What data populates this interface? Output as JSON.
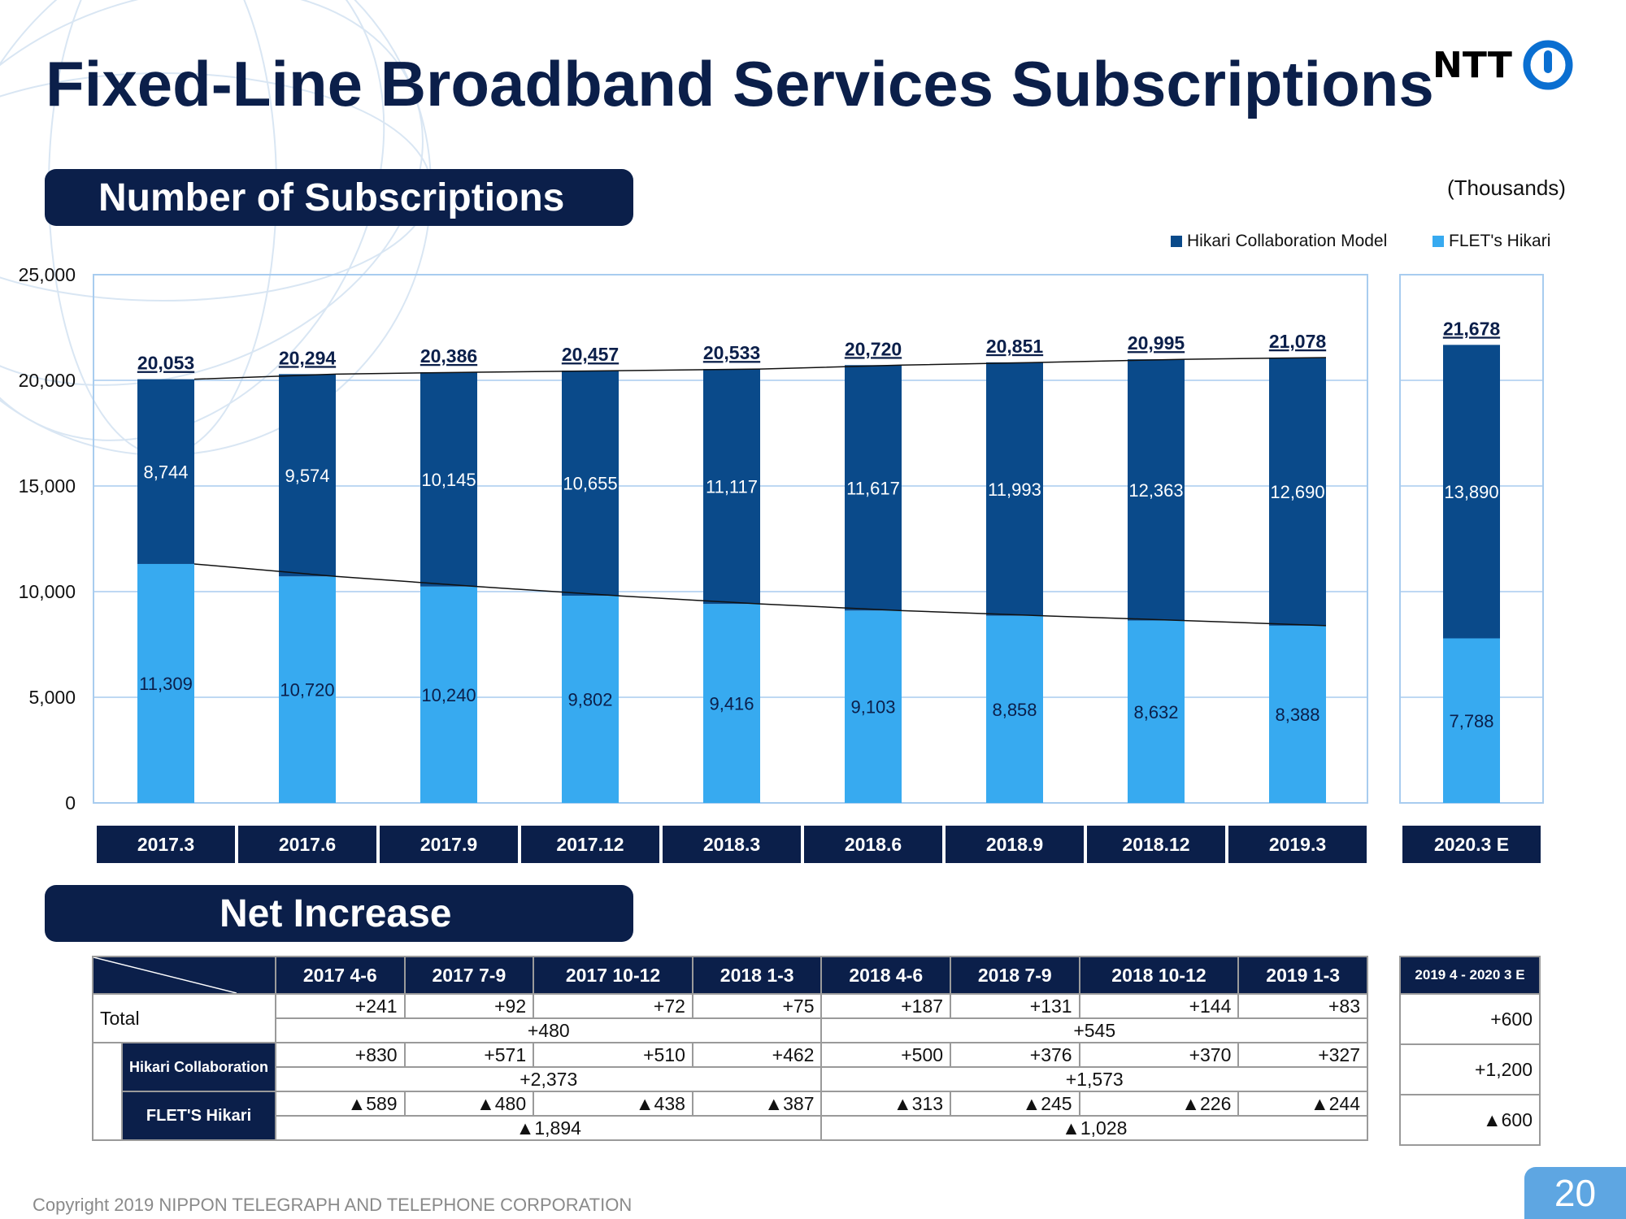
{
  "title": "Fixed-Line Broadband Services Subscriptions",
  "logo_text": "NTT",
  "section1_title": "Number of Subscriptions",
  "section2_title": "Net Increase",
  "units": "(Thousands)",
  "legend": {
    "hikari_collab": "Hikari Collaboration Model",
    "flets": "FLET's Hikari"
  },
  "colors": {
    "navy": "#0b1f4a",
    "dark_blue": "#0a4a8a",
    "light_blue": "#37aaf0"
  },
  "chart_data": {
    "type": "bar",
    "stacked": true,
    "categories": [
      "2017.3",
      "2017.6",
      "2017.9",
      "2017.12",
      "2018.3",
      "2018.6",
      "2018.9",
      "2018.12",
      "2019.3",
      "2020.3 E"
    ],
    "series": [
      {
        "name": "FLET's Hikari",
        "values": [
          11309,
          10720,
          10240,
          9802,
          9416,
          9103,
          8858,
          8632,
          8388,
          7788
        ]
      },
      {
        "name": "Hikari Collaboration Model",
        "values": [
          8744,
          9574,
          10145,
          10655,
          11117,
          11617,
          11993,
          12363,
          12690,
          13890
        ]
      }
    ],
    "totals": [
      20053,
      20294,
      20386,
      20457,
      20533,
      20720,
      20851,
      20995,
      21078,
      21678
    ],
    "labels": {
      "flets": [
        "11,309",
        "10,720",
        "10,240",
        "9,802",
        "9,416",
        "9,103",
        "8,858",
        "8,632",
        "8,388",
        "7,788"
      ],
      "collab": [
        "8,744",
        "9,574",
        "10,145",
        "10,655",
        "11,117",
        "11,617",
        "11,993",
        "12,363",
        "12,690",
        "13,890"
      ],
      "totals": [
        "20,053",
        "20,294",
        "20,386",
        "20,457",
        "20,533",
        "20,720",
        "20,851",
        "20,995",
        "21,078",
        "21,678"
      ]
    },
    "yticks": [
      "0",
      "5,000",
      "10,000",
      "15,000",
      "20,000",
      "25,000"
    ],
    "ylim": [
      0,
      25000
    ],
    "grid": true,
    "legend_position": "top-right"
  },
  "net_increase": {
    "periods": [
      "2017 4-6",
      "2017 7-9",
      "2017 10-12",
      "2018 1-3",
      "2018 4-6",
      "2018 7-9",
      "2018 10-12",
      "2019 1-3"
    ],
    "forecast_period": "2019 4 - 2020 3 E",
    "rows": {
      "total_label": "Total",
      "collab_label": "Hikari Collaboration",
      "flets_label": "FLET'S Hikari"
    },
    "total": [
      "+241",
      "+92",
      "+72",
      "+75",
      "+187",
      "+131",
      "+144",
      "+83"
    ],
    "total_fy": [
      "+480",
      "+545"
    ],
    "total_forecast": "+600",
    "collab": [
      "+830",
      "+571",
      "+510",
      "+462",
      "+500",
      "+376",
      "+370",
      "+327"
    ],
    "collab_fy": [
      "+2,373",
      "+1,573"
    ],
    "collab_forecast": "+1,200",
    "flets": [
      "▲589",
      "▲480",
      "▲438",
      "▲387",
      "▲313",
      "▲245",
      "▲226",
      "▲244"
    ],
    "flets_fy": [
      "▲1,894",
      "▲1,028"
    ],
    "flets_forecast": "▲600"
  },
  "footer": "Copyright 2019 NIPPON TELEGRAPH AND TELEPHONE CORPORATION",
  "page_number": "20"
}
